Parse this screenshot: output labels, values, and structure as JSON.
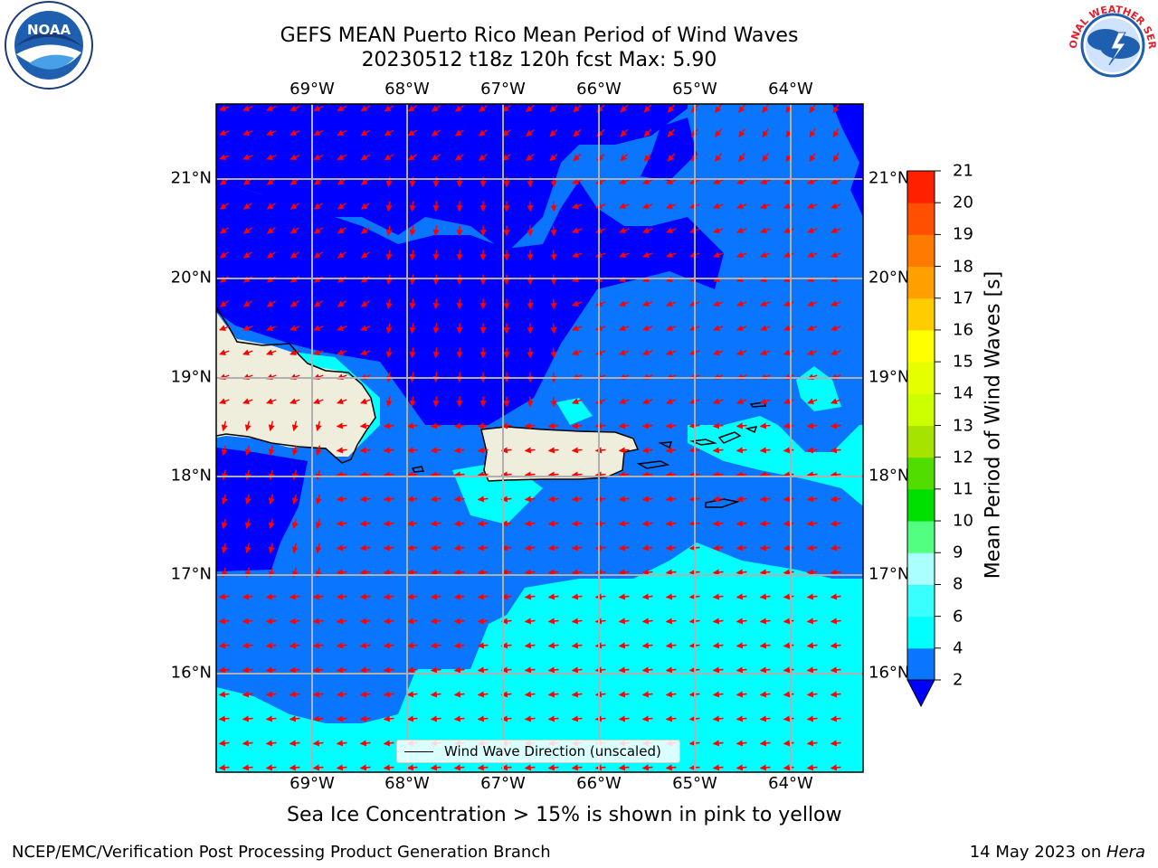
{
  "title_line1": "GEFS MEAN Puerto Rico Mean Period of Wind Waves",
  "title_line2": "20230512 t18z 120h fcst   Max: 5.90",
  "lon_labels": [
    "69°W",
    "68°W",
    "67°W",
    "66°W",
    "65°W",
    "64°W"
  ],
  "lat_labels": [
    "21°N",
    "20°N",
    "19°N",
    "18°N",
    "17°N",
    "16°N"
  ],
  "legend_label": "Wind Wave Direction (unscaled)",
  "colorbar": {
    "title": "Mean Period of Wind Waves [s]",
    "ticks": [
      "2",
      "4",
      "6",
      "8",
      "9",
      "10",
      "11",
      "12",
      "13",
      "14",
      "15",
      "16",
      "17",
      "18",
      "19",
      "20",
      "21"
    ],
    "colors": [
      "#0a76ff",
      "#00ffff",
      "#39ffff",
      "#aaffff",
      "#52ff80",
      "#00e000",
      "#52dd00",
      "#a6e400",
      "#ccff00",
      "#e6ff00",
      "#ffff00",
      "#ffcc00",
      "#ffa000",
      "#ff7b00",
      "#ff4f00",
      "#ff2000",
      "#ff0000"
    ],
    "under_color": "#0000ff"
  },
  "map_colors": {
    "ocean_2_4": "#0a76ff",
    "ocean_under_2": "#0000ff",
    "ocean_4_6": "#00ffff",
    "land": "#efeedd",
    "arrow": "#ff0000"
  },
  "note": "Sea Ice Concentration > 15% is shown in pink to yellow",
  "footer_left": "NCEP/EMC/Verification Post Processing Product Generation Branch",
  "footer_date": "14 May 2023 on ",
  "footer_machine": "Hera",
  "logo_left_text": "NOAA",
  "logo_right_text": "NATIONAL WEATHER SERVICE"
}
